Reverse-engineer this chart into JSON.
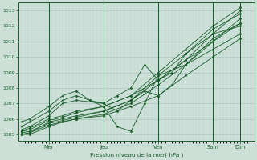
{
  "bg_color": "#cce0d8",
  "grid_color_major": "#aac8be",
  "grid_color_minor": "#bbd4cc",
  "line_color": "#1a5c2a",
  "ylabel": "Pression niveau de la mer( hPa )",
  "ylim": [
    1004.6,
    1013.5
  ],
  "yticks": [
    1005,
    1006,
    1007,
    1008,
    1009,
    1010,
    1011,
    1012,
    1013
  ],
  "x_day_labels": [
    "Mer",
    "Jeu",
    "Ven",
    "Sam",
    "Dim"
  ],
  "x_day_positions": [
    1,
    3,
    5,
    7,
    8
  ],
  "xlim": [
    -0.1,
    8.5
  ],
  "series": [
    {
      "x": [
        0,
        0.3,
        1,
        1.5,
        2,
        3,
        4,
        5,
        6,
        7,
        8
      ],
      "y": [
        1005.0,
        1005.1,
        1005.8,
        1006.0,
        1006.2,
        1006.5,
        1007.2,
        1008.5,
        1009.8,
        1011.5,
        1013.0
      ]
    },
    {
      "x": [
        0,
        0.3,
        1,
        1.5,
        2,
        3,
        4,
        5,
        6,
        7,
        8
      ],
      "y": [
        1005.2,
        1005.3,
        1005.9,
        1006.1,
        1006.4,
        1006.8,
        1007.5,
        1009.0,
        1010.5,
        1012.0,
        1013.2
      ]
    },
    {
      "x": [
        0,
        0.3,
        1,
        1.5,
        2,
        3,
        4,
        5,
        6,
        7,
        8
      ],
      "y": [
        1005.0,
        1005.0,
        1005.5,
        1005.8,
        1006.0,
        1006.3,
        1007.0,
        1008.2,
        1009.5,
        1011.0,
        1012.5
      ]
    },
    {
      "x": [
        0,
        0.3,
        1,
        1.5,
        2,
        3,
        4,
        5,
        6,
        7,
        8
      ],
      "y": [
        1005.1,
        1005.2,
        1005.7,
        1005.9,
        1006.1,
        1006.5,
        1007.2,
        1008.8,
        1010.2,
        1011.8,
        1012.8
      ]
    },
    {
      "x": [
        0,
        0.3,
        1,
        1.5,
        2,
        3,
        3.5,
        4,
        4.5,
        5,
        5.5,
        6,
        7,
        8
      ],
      "y": [
        1005.3,
        1005.5,
        1006.2,
        1007.0,
        1007.2,
        1007.0,
        1006.5,
        1007.2,
        1007.8,
        1007.5,
        1008.2,
        1009.5,
        1011.2,
        1012.2
      ]
    },
    {
      "x": [
        0,
        0.3,
        1,
        1.5,
        2,
        2.5,
        3,
        3.5,
        4,
        4.5,
        5,
        5.5,
        6,
        7,
        8
      ],
      "y": [
        1005.5,
        1005.8,
        1006.5,
        1007.2,
        1007.5,
        1007.2,
        1007.0,
        1007.5,
        1008.0,
        1009.5,
        1008.5,
        1009.0,
        1010.2,
        1011.5,
        1012.0
      ]
    },
    {
      "x": [
        0,
        0.3,
        1,
        1.5,
        2,
        2.5,
        3,
        3.5,
        4,
        4.5,
        5,
        6,
        7,
        8
      ],
      "y": [
        1005.8,
        1006.0,
        1006.8,
        1007.5,
        1007.8,
        1007.2,
        1006.8,
        1005.5,
        1005.2,
        1007.0,
        1008.8,
        1009.5,
        1010.5,
        1011.5
      ]
    },
    {
      "x": [
        0,
        0.3,
        1,
        1.5,
        2,
        3,
        4,
        5,
        6,
        7,
        8
      ],
      "y": [
        1005.0,
        1005.1,
        1005.6,
        1005.8,
        1006.0,
        1006.2,
        1006.8,
        1007.5,
        1008.8,
        1010.0,
        1011.2
      ]
    },
    {
      "x": [
        0,
        0.3,
        1,
        1.5,
        2,
        3,
        4,
        5,
        6,
        7,
        8
      ],
      "y": [
        1005.2,
        1005.4,
        1006.0,
        1006.2,
        1006.5,
        1006.8,
        1007.5,
        1008.5,
        1009.8,
        1011.0,
        1012.2
      ]
    }
  ]
}
